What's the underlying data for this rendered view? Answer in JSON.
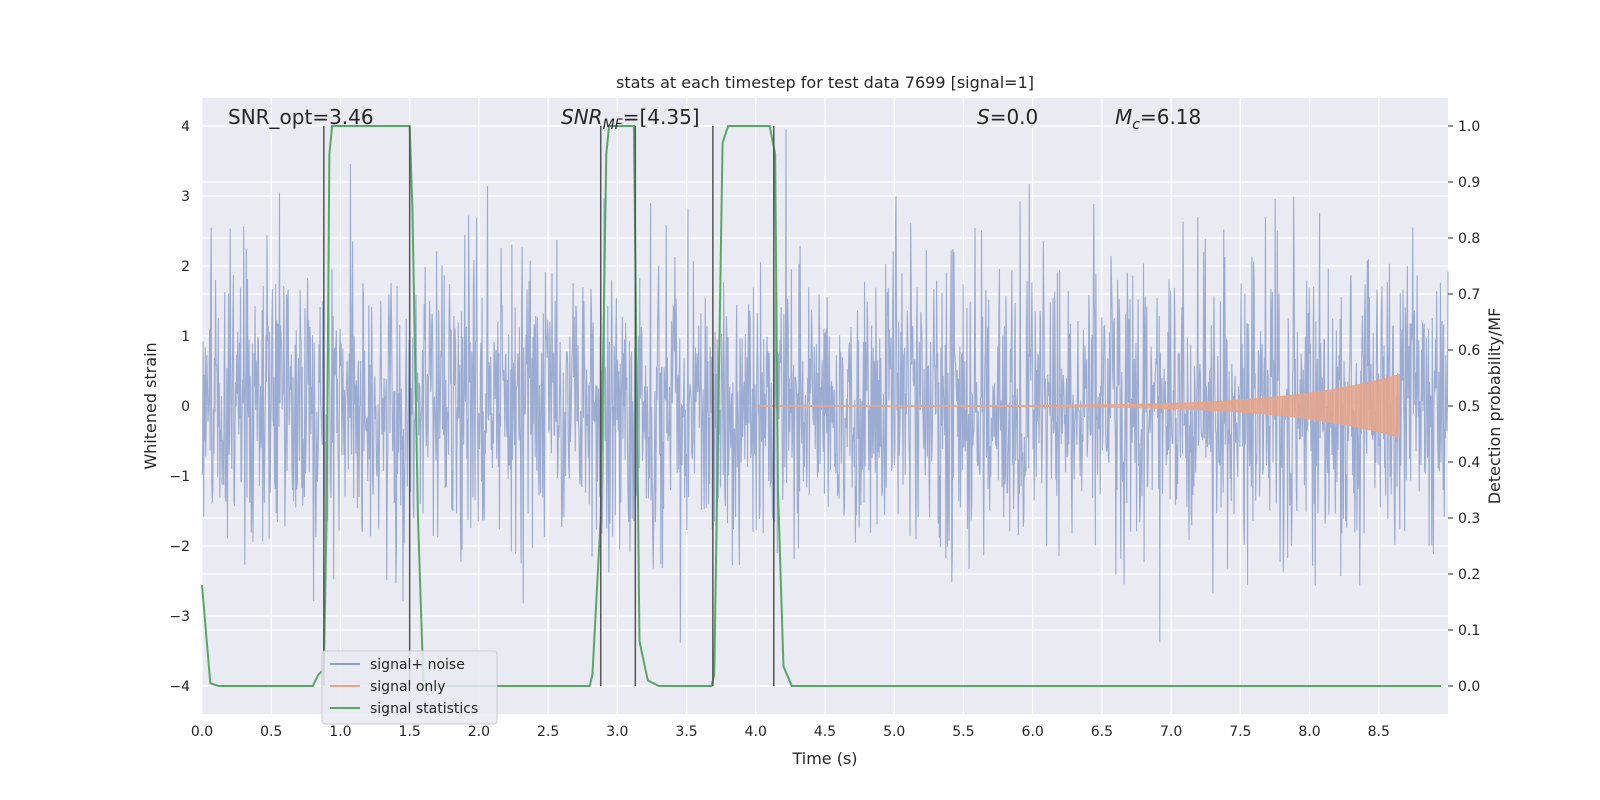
{
  "chart_data": {
    "type": "line",
    "title": "stats at each timestep for test data 7699 [signal=1]",
    "xlabel": "Time (s)",
    "ylabel_left": "Whitened strain",
    "ylabel_right": "Detection probability/MF",
    "xlim": [
      0,
      9.0
    ],
    "ylim_left": [
      -4.4,
      4.4
    ],
    "ylim_right": [
      -0.05,
      1.05
    ],
    "x_ticks": [
      0.0,
      0.5,
      1.0,
      1.5,
      2.0,
      2.5,
      3.0,
      3.5,
      4.0,
      4.5,
      5.0,
      5.5,
      6.0,
      6.5,
      7.0,
      7.5,
      8.0,
      8.5
    ],
    "x_tick_labels": [
      "0.0",
      "0.5",
      "1.0",
      "1.5",
      "2.0",
      "2.5",
      "3.0",
      "3.5",
      "4.0",
      "4.5",
      "5.0",
      "5.5",
      "6.0",
      "6.5",
      "7.0",
      "7.5",
      "8.0",
      "8.5"
    ],
    "y_left_ticks": [
      -4,
      -3,
      -2,
      -1,
      0,
      1,
      2,
      3,
      4
    ],
    "y_left_tick_labels": [
      "−4",
      "−3",
      "−2",
      "−1",
      "0",
      "1",
      "2",
      "3",
      "4"
    ],
    "y_right_ticks": [
      0.0,
      0.1,
      0.2,
      0.3,
      0.4,
      0.5,
      0.6,
      0.7,
      0.8,
      0.9,
      1.0
    ],
    "y_right_tick_labels": [
      "0.0",
      "0.1",
      "0.2",
      "0.3",
      "0.4",
      "0.5",
      "0.6",
      "0.7",
      "0.8",
      "0.9",
      "1.0"
    ],
    "grid": true,
    "legend_position": "lower-left",
    "annotations": {
      "snr_opt": "SNR_opt=3.46",
      "snr_mf": {
        "base": "SNR",
        "sub": "MF",
        "rest": "=[4.35]"
      },
      "s_value": {
        "base": "S",
        "rest": "=0.0"
      },
      "mc": {
        "base": "M",
        "sub": "c",
        "rest": "=6.18"
      }
    },
    "series": [
      {
        "name": "signal+ noise",
        "color": "#8da0cb",
        "description_values": {
          "envelope_typical": 2.3,
          "peak_max": 4.0,
          "peak_min": -4.0
        }
      },
      {
        "name": "signal only",
        "color": "#e8a58a",
        "chirp": {
          "start_x": 4.0,
          "end_x": 8.65,
          "start_amp": 0.005,
          "end_amp": 0.45
        }
      },
      {
        "name": "signal statistics",
        "color": "#55a868",
        "x": [
          0.0,
          0.06,
          0.12,
          0.2,
          0.4,
          0.6,
          0.8,
          0.84,
          0.88,
          0.9,
          0.92,
          0.94,
          0.96,
          1.0,
          1.2,
          1.4,
          1.5,
          1.52,
          1.56,
          1.6,
          1.7,
          2.0,
          2.4,
          2.8,
          2.82,
          2.88,
          2.92,
          2.94,
          2.96,
          3.04,
          3.12,
          3.16,
          3.22,
          3.3,
          3.4,
          3.5,
          3.6,
          3.68,
          3.7,
          3.76,
          3.8,
          3.84,
          4.0,
          4.1,
          4.14,
          4.16,
          4.2,
          4.26,
          4.4,
          5.0,
          6.0,
          7.0,
          8.0,
          8.95
        ],
        "y": [
          0.18,
          0.005,
          0.0,
          0.0,
          0.0,
          0.0,
          0.0,
          0.02,
          0.03,
          0.3,
          0.95,
          1.0,
          1.0,
          1.0,
          1.0,
          1.0,
          1.0,
          0.85,
          0.3,
          0.0,
          0.0,
          0.0,
          0.0,
          0.0,
          0.02,
          0.3,
          0.95,
          1.0,
          1.0,
          1.0,
          1.0,
          0.08,
          0.01,
          0.0,
          0.0,
          0.0,
          0.0,
          0.0,
          0.02,
          0.97,
          1.0,
          1.0,
          1.0,
          1.0,
          0.95,
          0.35,
          0.035,
          0.0,
          0.0,
          0.0,
          0.0,
          0.0,
          0.0,
          0.0
        ]
      }
    ],
    "vertical_lines": [
      {
        "x": 0.88,
        "y_min": -4.0,
        "y_max": 4.0
      },
      {
        "x": 1.5,
        "y_min": -4.0,
        "y_max": 4.0
      },
      {
        "x": 2.88,
        "y_min": -4.0,
        "y_max": 4.0
      },
      {
        "x": 3.13,
        "y_min": -4.0,
        "y_max": 4.0
      },
      {
        "x": 3.69,
        "y_min": -4.0,
        "y_max": 4.0
      },
      {
        "x": 4.13,
        "y_min": -4.0,
        "y_max": 4.0
      }
    ]
  }
}
